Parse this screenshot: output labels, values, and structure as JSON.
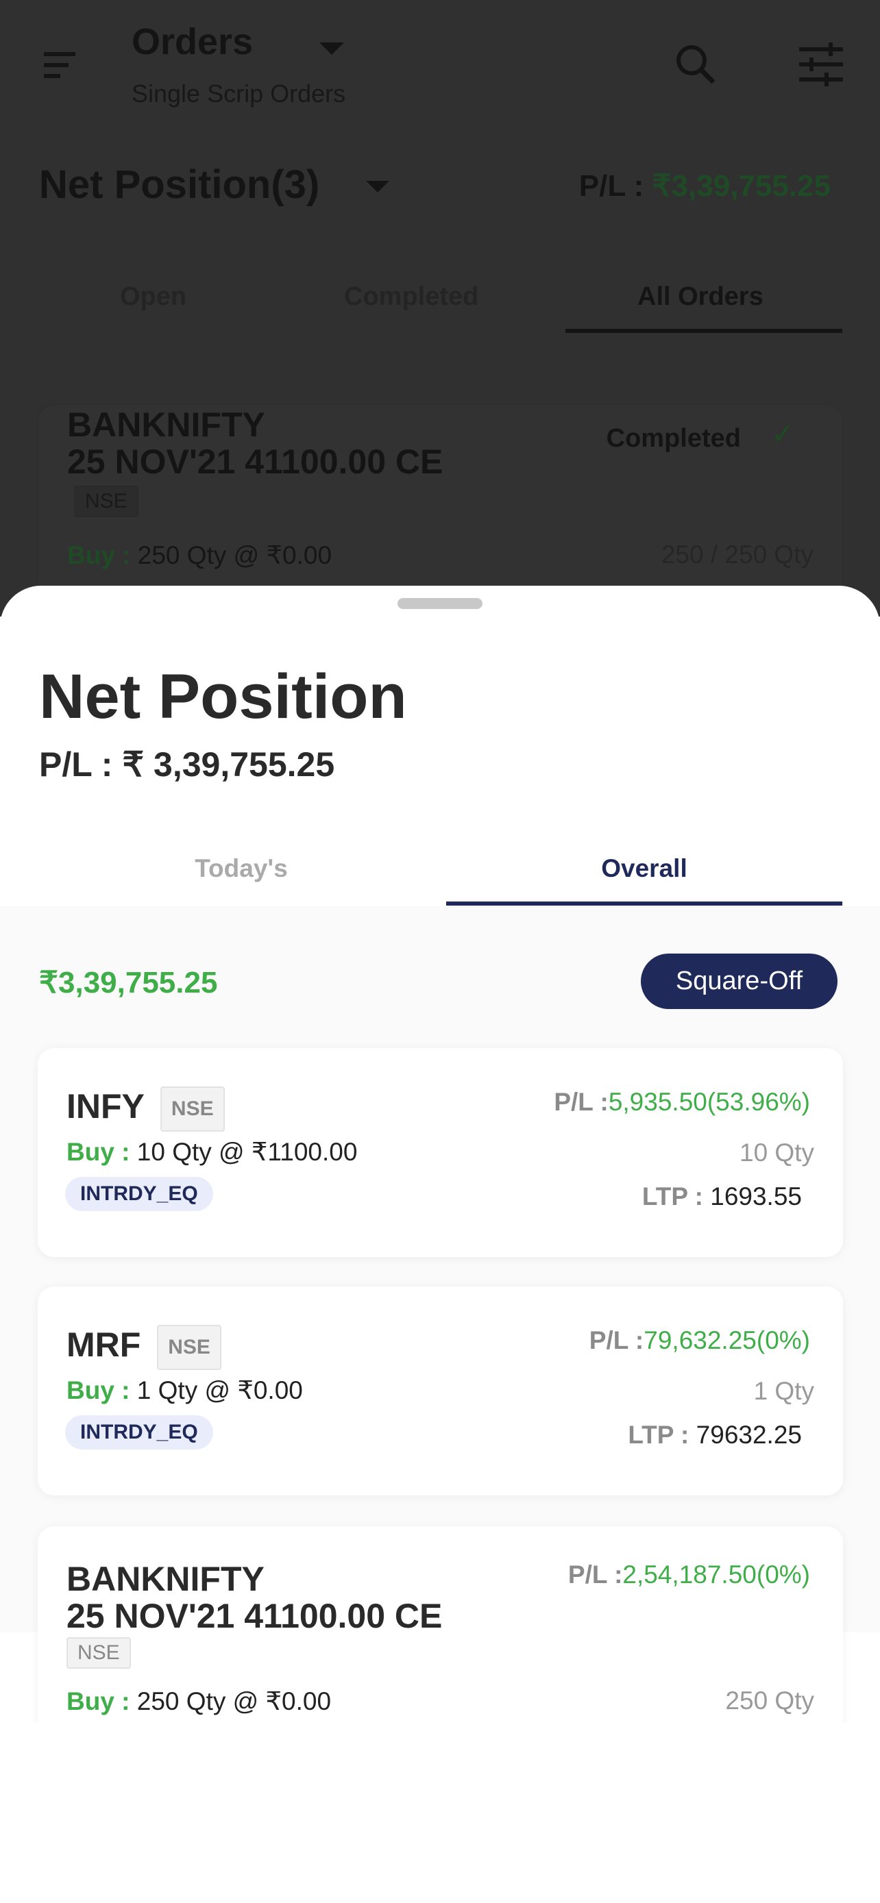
{
  "header": {
    "title": "Orders",
    "subtitle": "Single Scrip Orders",
    "icons": [
      "menu-icon",
      "dropdown-icon",
      "search-icon",
      "filter-sliders-icon"
    ]
  },
  "summary": {
    "title": "Net Position(3)",
    "pl_label": "P/L :",
    "pl_value": "₹3,39,755.25"
  },
  "order_tabs": [
    {
      "label": "Open"
    },
    {
      "label": "Completed"
    },
    {
      "label": "All Orders",
      "active": true
    }
  ],
  "bg_order": {
    "symbol_line1": "BANKNIFTY",
    "symbol_line2": "25 NOV'21 41100.00 CE",
    "exchange": "NSE",
    "status": "Completed",
    "side": "Buy :",
    "detail": "250 Qty @ ₹0.00",
    "filled": "250 / 250 Qty"
  },
  "sheet": {
    "title": "Net Position",
    "pl_label": "P/L :",
    "pl_value": "₹ 3,39,755.25",
    "tabs": [
      {
        "label": "Today's"
      },
      {
        "label": "Overall",
        "active": true
      }
    ],
    "total": "₹3,39,755.25",
    "square_off": "Square-Off",
    "positions": [
      {
        "symbol": "INFY",
        "exchange": "NSE",
        "pl_label": "P/L :",
        "pl": "5,935.50(53.96%)",
        "side": "Buy :",
        "detail": "10 Qty @ ₹1100.00",
        "qty": "10 Qty",
        "product": "INTRDY_EQ",
        "ltp_label": "LTP :",
        "ltp": "1693.55"
      },
      {
        "symbol": "MRF",
        "exchange": "NSE",
        "pl_label": "P/L :",
        "pl": "79,632.25(0%)",
        "side": "Buy :",
        "detail": "1 Qty @ ₹0.00",
        "qty": "1 Qty",
        "product": "INTRDY_EQ",
        "ltp_label": "LTP :",
        "ltp": "79632.25"
      },
      {
        "symbol_line1": "BANKNIFTY",
        "symbol_line2": "25 NOV'21 41100.00 CE",
        "exchange": "NSE",
        "pl_label": "P/L :",
        "pl": "2,54,187.50(0%)",
        "side": "Buy :",
        "detail": "250 Qty @ ₹0.00",
        "qty": "250 Qty"
      }
    ]
  },
  "colors": {
    "green": "#3fae49",
    "navy": "#1f2a5a",
    "overlay": "rgba(0,0,0,0.8)"
  }
}
